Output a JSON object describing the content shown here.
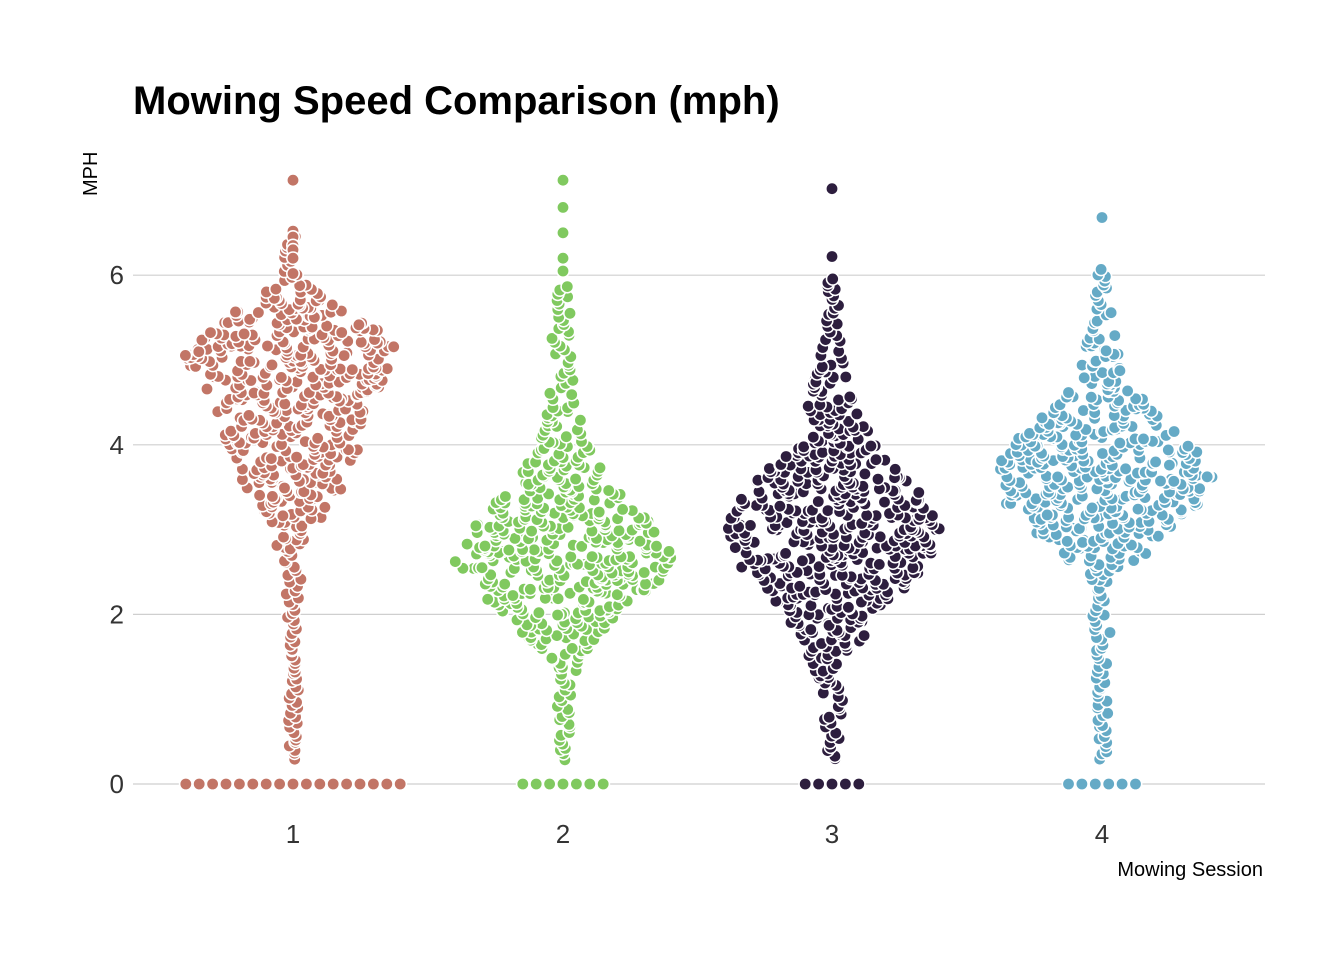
{
  "chart_data": {
    "type": "scatter",
    "subtype": "beeswarm",
    "title": "Mowing Speed Comparison (mph)",
    "xlabel": "Mowing Session",
    "ylabel": "MPH",
    "categories": [
      "1",
      "2",
      "3",
      "4"
    ],
    "ylim": [
      -0.5,
      7.5
    ],
    "yticks": [
      0,
      2,
      4,
      6
    ],
    "grid": "horizontal",
    "legend": "none",
    "series": [
      {
        "category": "1",
        "color": "#c27566",
        "zero_count": 17,
        "stats": {
          "min": 0,
          "median": 4.3,
          "max": 7.1
        },
        "density_profile": [
          {
            "y": 0.3,
            "rel_width": 0.05
          },
          {
            "y": 2.0,
            "rel_width": 0.05
          },
          {
            "y": 2.6,
            "rel_width": 0.08
          },
          {
            "y": 3.0,
            "rel_width": 0.2
          },
          {
            "y": 3.5,
            "rel_width": 0.45
          },
          {
            "y": 4.0,
            "rel_width": 0.6
          },
          {
            "y": 4.5,
            "rel_width": 0.7
          },
          {
            "y": 5.1,
            "rel_width": 1.0
          },
          {
            "y": 5.5,
            "rel_width": 0.6
          },
          {
            "y": 5.9,
            "rel_width": 0.12
          },
          {
            "y": 6.5,
            "rel_width": 0.04
          }
        ],
        "outliers": [
          7.12,
          6.52,
          6.45,
          6.35,
          6.3,
          6.2,
          6.02
        ]
      },
      {
        "category": "2",
        "color": "#80c95f",
        "zero_count": 7,
        "stats": {
          "min": 0,
          "median": 2.7,
          "max": 7.1
        },
        "density_profile": [
          {
            "y": 0.3,
            "rel_width": 0.05
          },
          {
            "y": 1.0,
            "rel_width": 0.08
          },
          {
            "y": 1.5,
            "rel_width": 0.15
          },
          {
            "y": 2.0,
            "rel_width": 0.55
          },
          {
            "y": 2.4,
            "rel_width": 0.85
          },
          {
            "y": 2.7,
            "rel_width": 1.0
          },
          {
            "y": 3.1,
            "rel_width": 0.8
          },
          {
            "y": 3.5,
            "rel_width": 0.45
          },
          {
            "y": 4.0,
            "rel_width": 0.22
          },
          {
            "y": 4.5,
            "rel_width": 0.12
          },
          {
            "y": 5.3,
            "rel_width": 0.1
          },
          {
            "y": 5.9,
            "rel_width": 0.05
          }
        ],
        "outliers": [
          7.12,
          6.8,
          6.5,
          6.2,
          6.05
        ]
      },
      {
        "category": "3",
        "color": "#2d1e3e",
        "zero_count": 5,
        "stats": {
          "min": 0,
          "median": 2.9,
          "max": 7.0
        },
        "density_profile": [
          {
            "y": 0.3,
            "rel_width": 0.05
          },
          {
            "y": 1.0,
            "rel_width": 0.1
          },
          {
            "y": 1.5,
            "rel_width": 0.2
          },
          {
            "y": 2.0,
            "rel_width": 0.4
          },
          {
            "y": 2.5,
            "rel_width": 0.8
          },
          {
            "y": 3.0,
            "rel_width": 1.0
          },
          {
            "y": 3.5,
            "rel_width": 0.75
          },
          {
            "y": 4.0,
            "rel_width": 0.4
          },
          {
            "y": 4.5,
            "rel_width": 0.2
          },
          {
            "y": 5.0,
            "rel_width": 0.12
          },
          {
            "y": 5.5,
            "rel_width": 0.07
          },
          {
            "y": 6.0,
            "rel_width": 0.04
          }
        ],
        "outliers": [
          7.02,
          6.22
        ]
      },
      {
        "category": "4",
        "color": "#65aac6",
        "zero_count": 6,
        "stats": {
          "min": 0,
          "median": 3.6,
          "max": 6.7
        },
        "density_profile": [
          {
            "y": 0.3,
            "rel_width": 0.05
          },
          {
            "y": 1.5,
            "rel_width": 0.06
          },
          {
            "y": 2.4,
            "rel_width": 0.12
          },
          {
            "y": 2.8,
            "rel_width": 0.45
          },
          {
            "y": 3.2,
            "rel_width": 0.8
          },
          {
            "y": 3.6,
            "rel_width": 1.0
          },
          {
            "y": 4.0,
            "rel_width": 0.85
          },
          {
            "y": 4.4,
            "rel_width": 0.45
          },
          {
            "y": 4.8,
            "rel_width": 0.2
          },
          {
            "y": 5.3,
            "rel_width": 0.12
          },
          {
            "y": 5.8,
            "rel_width": 0.06
          },
          {
            "y": 6.1,
            "rel_width": 0.03
          }
        ],
        "outliers": [
          6.68
        ]
      }
    ]
  }
}
